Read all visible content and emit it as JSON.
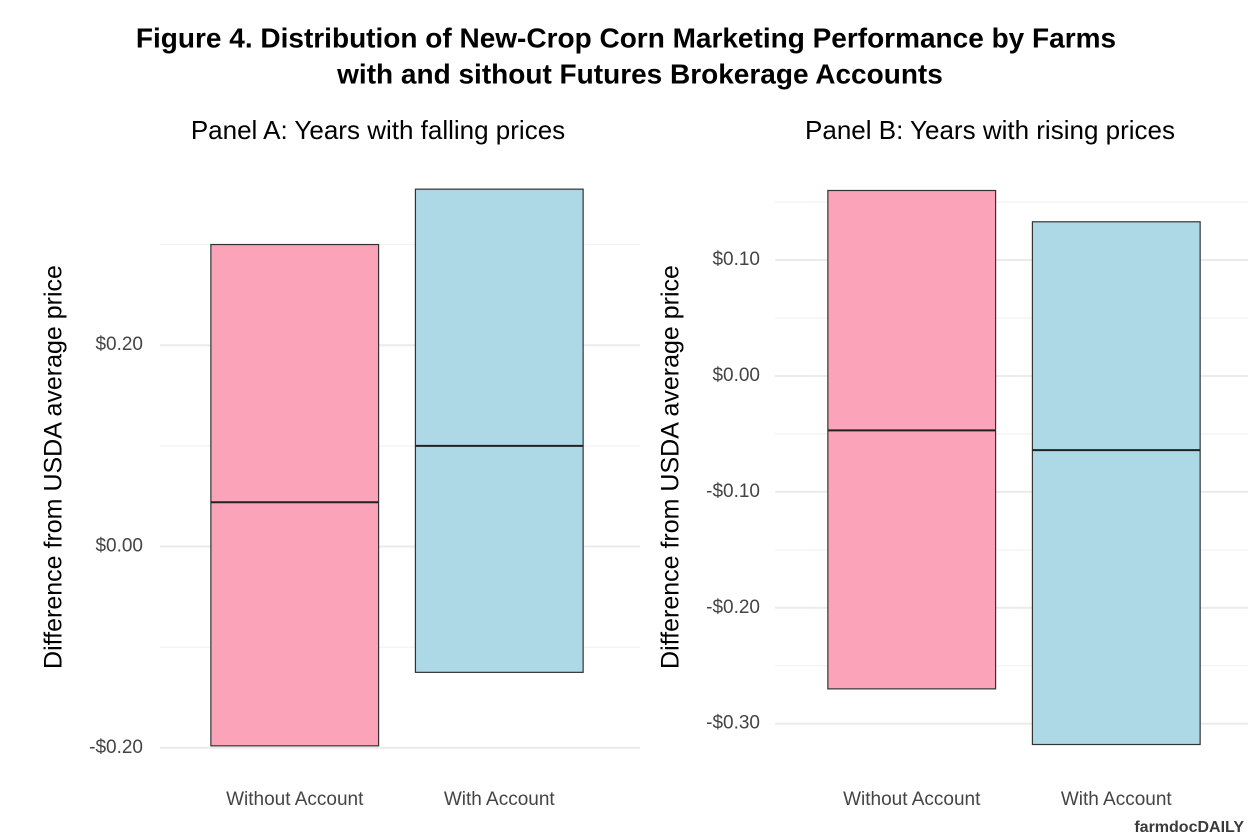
{
  "title": "Figure 4. Distribution of New-Crop Corn Marketing Performance by Farms",
  "title_line2": "with and sithout Futures Brokerage Accounts",
  "source": "farmdocDAILY",
  "chart_data": [
    {
      "type": "range",
      "title": "Panel A: Years with falling prices",
      "y_label": "Difference from USDA average price",
      "categories": [
        "Without Account",
        "With Account"
      ],
      "low": [
        -0.198,
        -0.125
      ],
      "median": [
        0.044,
        0.1
      ],
      "high": [
        0.3,
        0.355
      ],
      "colors": [
        "#fba3b8",
        "#add8e6"
      ],
      "ylim": [
        -0.222,
        0.379
      ],
      "yticks": [
        {
          "value": -0.2,
          "label": "-$0.20"
        },
        {
          "value": 0,
          "label": "$0.00"
        },
        {
          "value": 0.2,
          "label": "$0.20"
        }
      ],
      "minor_yticks": [
        -0.1,
        0.1,
        0.3
      ],
      "grid": true
    },
    {
      "type": "range",
      "title": "Panel B: Years with rising prices",
      "y_label": "Difference from USDA average price",
      "categories": [
        "Without Account",
        "With Account"
      ],
      "low": [
        -0.27,
        -0.318
      ],
      "median": [
        -0.047,
        -0.064
      ],
      "high": [
        0.16,
        0.133
      ],
      "colors": [
        "#fba3b8",
        "#add8e6"
      ],
      "ylim": [
        -0.34,
        0.182
      ],
      "yticks": [
        {
          "value": -0.3,
          "label": "-$0.30"
        },
        {
          "value": -0.2,
          "label": "-$0.20"
        },
        {
          "value": -0.1,
          "label": "-$0.10"
        },
        {
          "value": 0,
          "label": "$0.00"
        },
        {
          "value": 0.1,
          "label": "$0.10"
        }
      ],
      "minor_yticks": [
        -0.25,
        -0.15,
        -0.05,
        0.05,
        0.15
      ],
      "grid": true
    }
  ]
}
